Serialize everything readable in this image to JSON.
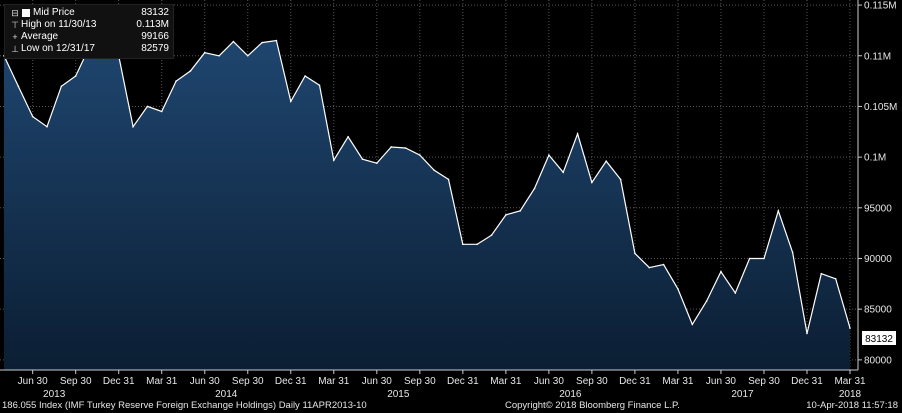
{
  "legend": {
    "items": [
      {
        "label": "Mid Price",
        "value": "83132",
        "symbol": "box"
      },
      {
        "label": "High on 11/30/13",
        "value": "0.113M",
        "symbol": "⊤"
      },
      {
        "label": "Average",
        "value": "99166",
        "symbol": "+"
      },
      {
        "label": "Low on 12/31/17",
        "value": "82579",
        "symbol": "⊥"
      }
    ]
  },
  "last_price_label": "83132",
  "footer": {
    "left": "186.055 Index (IMF Turkey Reserve Foreign Exchange Holdings)  Daily 11APR2013-10",
    "center": "Copyright© 2018 Bloomberg Finance L.P.",
    "right": "10-Apr-2018 11:57:18"
  },
  "colors": {
    "background": "#000000",
    "area_fill_top": "#1f4670",
    "area_fill_bottom": "#0b1e33",
    "line": "#ffffff",
    "grid": "#555555"
  },
  "chart_data": {
    "type": "area",
    "y_ticks": [
      "0.115M",
      "0.11M",
      "0.105M",
      "0.1M",
      "95000",
      "90000",
      "85000",
      "80000"
    ],
    "y_tick_values": [
      115000,
      110000,
      105000,
      100000,
      95000,
      90000,
      85000,
      80000
    ],
    "ylim": [
      79000,
      115500
    ],
    "x_ticks": [
      "Jun 30",
      "Sep 30",
      "Dec 31",
      "Mar 31",
      "Jun 30",
      "Sep 30",
      "Dec 31",
      "Mar 31",
      "Jun 30",
      "Sep 30",
      "Dec 31",
      "Mar 31",
      "Jun 30",
      "Sep 30",
      "Dec 31",
      "Mar 31",
      "Jun 30",
      "Sep 30",
      "Dec 31",
      "Mar 31"
    ],
    "x_tick_positions": [
      2,
      5,
      8,
      11,
      14,
      17,
      20,
      23,
      26,
      29,
      32,
      35,
      38,
      41,
      44,
      47,
      50,
      53,
      56,
      59
    ],
    "year_labels": [
      {
        "label": "2013",
        "at": 3.5
      },
      {
        "label": "2014",
        "at": 15.5
      },
      {
        "label": "2015",
        "at": 27.5
      },
      {
        "label": "2016",
        "at": 39.5
      },
      {
        "label": "2017",
        "at": 51.5
      },
      {
        "label": "2018",
        "at": 59
      }
    ],
    "grid": true,
    "series": [
      {
        "name": "Mid Price",
        "values": [
          110000,
          107000,
          104000,
          103000,
          107000,
          108000,
          111000,
          112000,
          110000,
          103000,
          105000,
          104500,
          107500,
          108500,
          110300,
          110000,
          111400,
          110000,
          111300,
          111500,
          105500,
          108000,
          107100,
          99700,
          102000,
          99800,
          99400,
          101000,
          100900,
          100200,
          98700,
          97800,
          91400,
          91400,
          92300,
          94300,
          94700,
          96900,
          100200,
          98500,
          102300,
          97500,
          99600,
          97800,
          90500,
          89100,
          89400,
          87000,
          83500,
          85800,
          88700,
          86600,
          90000,
          90000,
          94700,
          90600,
          82600,
          88500,
          88000,
          83132
        ]
      }
    ]
  }
}
